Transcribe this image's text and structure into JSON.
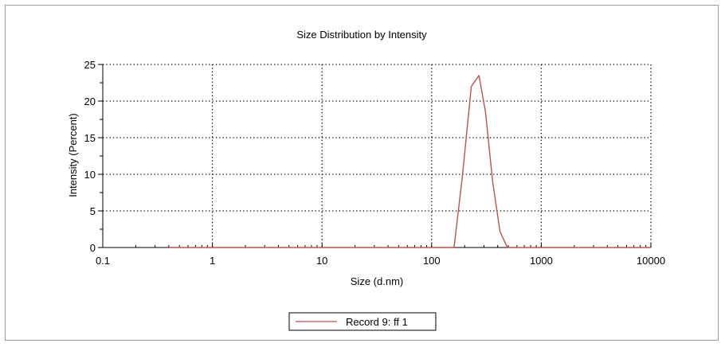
{
  "chart_data": {
    "type": "line",
    "title": "Size Distribution by Intensity",
    "xlabel": "Size (d.nm)",
    "ylabel": "Intensity (Percent)",
    "xscale": "log",
    "xlim": [
      0.1,
      10000
    ],
    "ylim": [
      0,
      25
    ],
    "x_ticks": [
      0.1,
      1,
      10,
      100,
      1000,
      10000
    ],
    "x_tick_labels": [
      "0.1",
      "1",
      "10",
      "100",
      "1000",
      "10000"
    ],
    "y_ticks": [
      0,
      5,
      10,
      15,
      20,
      25
    ],
    "y_tick_labels": [
      "0",
      "5",
      "10",
      "15",
      "20",
      "25"
    ],
    "grid": true,
    "legend_position": "bottom-center",
    "series": [
      {
        "name": "Record 9: ff 1",
        "color": "#c0504d",
        "x": [
          0.4,
          0.6,
          1,
          2,
          5,
          10,
          20,
          50,
          100,
          150,
          160,
          190,
          230,
          270,
          310,
          360,
          420,
          490,
          600,
          1000,
          3000,
          10000
        ],
        "y": [
          0,
          0,
          0,
          0,
          0,
          0,
          0,
          0,
          0,
          0,
          0,
          9.5,
          22,
          23.5,
          18.5,
          9,
          2.2,
          0,
          0,
          0,
          0,
          0
        ]
      }
    ]
  }
}
